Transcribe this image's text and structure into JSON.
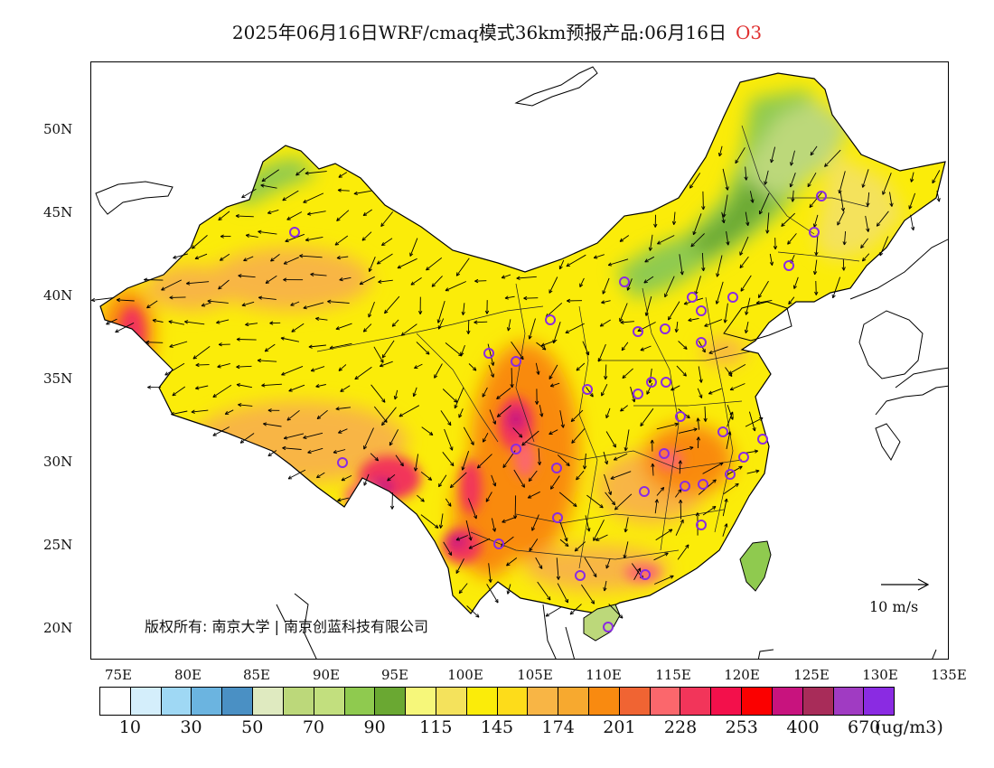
{
  "title": {
    "main": "2025年06月16日WRF/cmaq模式36km预报产品:06月16日",
    "pollutant": "O3",
    "pollutant_color": "#e03030"
  },
  "axes": {
    "lat_labels": [
      "50N",
      "45N",
      "40N",
      "35N",
      "30N",
      "25N",
      "20N"
    ],
    "lon_labels": [
      "75E",
      "80E",
      "85E",
      "90E",
      "95E",
      "100E",
      "105E",
      "110E",
      "115E",
      "120E",
      "125E",
      "130E",
      "135E"
    ]
  },
  "copyright": "版权所有: 南京大学 | 南京创蓝科技有限公司",
  "wind_scale": {
    "label": "10  m/s"
  },
  "legend": {
    "colors": [
      "#ffffff",
      "#d4eefb",
      "#9fd8f4",
      "#6bb4e0",
      "#4a90c4",
      "#dfeac0",
      "#bcd87a",
      "#c2df7e",
      "#8fca4f",
      "#6aa832",
      "#f6f77a",
      "#f4e25c",
      "#fbec09",
      "#fddc1a",
      "#f8b545",
      "#f7a92f",
      "#f98a10",
      "#f06433",
      "#fb676c",
      "#f2355a",
      "#f3104b",
      "#fb0000",
      "#c8137e",
      "#a82c59",
      "#a03bc2",
      "#8a2be2"
    ],
    "tick_labels": [
      "10",
      "30",
      "50",
      "70",
      "90",
      "115",
      "145",
      "174",
      "201",
      "228",
      "253",
      "400",
      "670"
    ],
    "unit": "(ug/m3)"
  }
}
